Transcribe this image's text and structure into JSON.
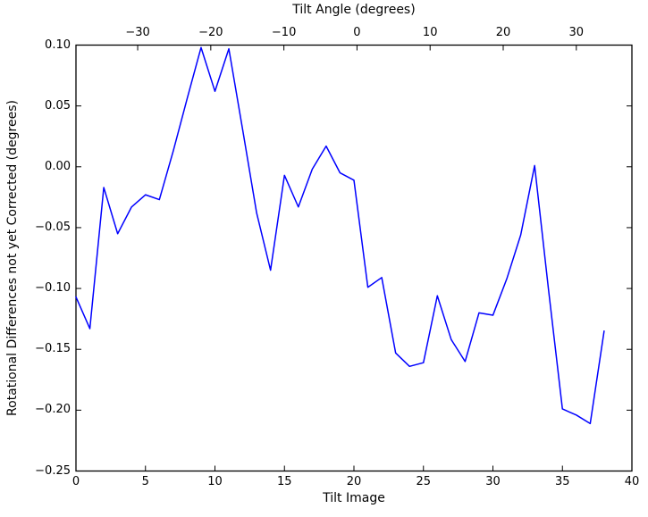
{
  "figure": {
    "background": "#ffffff",
    "frame_color": "#000000"
  },
  "chart_data": {
    "type": "line",
    "title": "",
    "xlabel": "Tilt Image",
    "ylabel": "Rotational Differences not yet Corrected (degrees)",
    "top_axis": {
      "label": "Tilt Angle (degrees)",
      "tick_labels": [
        "−30",
        "−20",
        "−10",
        "0",
        "10",
        "20",
        "30"
      ],
      "tick_pct": [
        11.1,
        24.25,
        37.4,
        50.55,
        63.7,
        76.85,
        90.0
      ]
    },
    "xlim": [
      0,
      40
    ],
    "ylim": [
      -0.25,
      0.1
    ],
    "x_tick_values": [
      0,
      5,
      10,
      15,
      20,
      25,
      30,
      35,
      40
    ],
    "x_tick_labels": [
      "0",
      "5",
      "10",
      "15",
      "20",
      "25",
      "30",
      "35",
      "40"
    ],
    "y_tick_values": [
      0.1,
      0.05,
      0.0,
      -0.05,
      -0.1,
      -0.15,
      -0.2,
      -0.25
    ],
    "y_tick_labels": [
      "0.10",
      "0.05",
      "0.00",
      "−0.05",
      "−0.10",
      "−0.15",
      "−0.20",
      "−0.25"
    ],
    "grid": false,
    "legend": null,
    "line_color": "#0000ff",
    "series": [
      {
        "name": "rotational-difference",
        "x": [
          0,
          1,
          2,
          3,
          4,
          5,
          6,
          7,
          8,
          9,
          10,
          11,
          12,
          13,
          14,
          15,
          16,
          17,
          18,
          19,
          20,
          21,
          22,
          23,
          24,
          25,
          26,
          27,
          28,
          29,
          30,
          31,
          32,
          33,
          34,
          35,
          36,
          37,
          38
        ],
        "values": [
          -0.107,
          -0.133,
          -0.017,
          -0.055,
          -0.033,
          -0.023,
          -0.027,
          0.013,
          0.056,
          0.098,
          0.062,
          0.097,
          0.03,
          -0.038,
          -0.085,
          -0.007,
          -0.033,
          -0.002,
          0.017,
          -0.005,
          -0.011,
          -0.099,
          -0.091,
          -0.153,
          -0.164,
          -0.161,
          -0.106,
          -0.142,
          -0.16,
          -0.12,
          -0.122,
          -0.092,
          -0.056,
          0.001,
          -0.101,
          -0.199,
          -0.204,
          -0.211,
          -0.135
        ]
      }
    ]
  }
}
